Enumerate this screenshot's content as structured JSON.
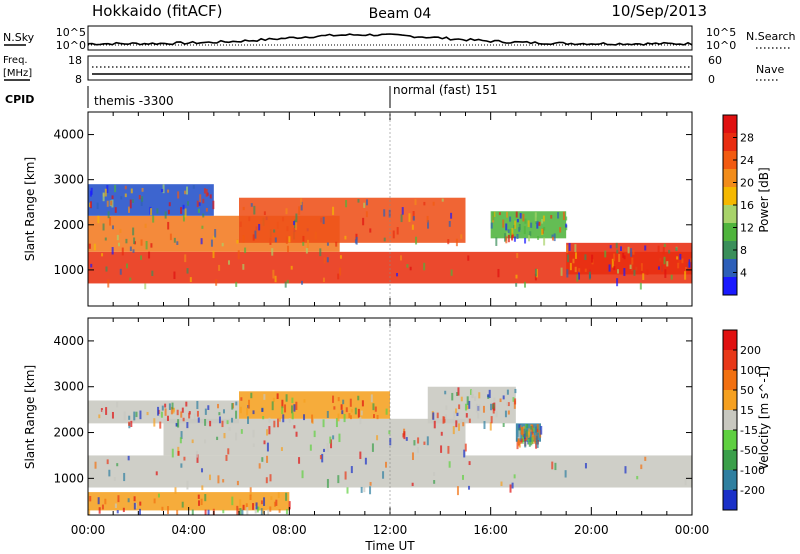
{
  "header": {
    "station": "Hokkaido (fitACF)",
    "beam": "Beam 04",
    "date": "10/Sep/2013"
  },
  "panels": {
    "nsky": {
      "label": "N.Sky",
      "right_label": "N.Search",
      "tick_top": "10^5",
      "tick_bottom": "10^0"
    },
    "freq": {
      "label_line1": "Freq.",
      "label_line2": "[MHz]",
      "right_label": "Nave",
      "left_ticks": [
        "18",
        "8"
      ],
      "right_ticks": [
        "60",
        "0"
      ]
    },
    "cpid": {
      "label": "CPID",
      "modes": [
        "themis -3300",
        "normal (fast) 151"
      ]
    }
  },
  "chart_data": [
    {
      "type": "heatmap",
      "name": "power",
      "ylabel": "Slant Range [km]",
      "xlabel": "",
      "ylim": [
        200,
        4500
      ],
      "yticks": [
        "1000",
        "2000",
        "3000",
        "4000"
      ],
      "xlim_hours": [
        0,
        24
      ],
      "colorbar": {
        "label": "Power [dB]",
        "tick_labels": [
          "4",
          "8",
          "12",
          "16",
          "20",
          "24",
          "28"
        ],
        "colors": [
          "#1a1aff",
          "#2d5fb8",
          "#3a8f5a",
          "#4fb43c",
          "#a8d36a",
          "#f5b800",
          "#f28c1a",
          "#f25a10",
          "#e82c10",
          "#e01010"
        ]
      },
      "bands": [
        {
          "x_start": 0,
          "x_end": 24,
          "y_low": 700,
          "y_high": 1400,
          "color": "#e83010"
        },
        {
          "x_start": 0,
          "x_end": 10,
          "y_low": 1400,
          "y_high": 2200,
          "color": "#f27a20"
        },
        {
          "x_start": 0,
          "x_end": 5,
          "y_low": 2200,
          "y_high": 2900,
          "color": "#2250c8"
        },
        {
          "x_start": 6,
          "x_end": 15,
          "y_low": 1600,
          "y_high": 2600,
          "color": "#ee5018"
        },
        {
          "x_start": 16,
          "x_end": 19,
          "y_low": 1700,
          "y_high": 2300,
          "color": "#4fb43c"
        },
        {
          "x_start": 19,
          "x_end": 24,
          "y_low": 900,
          "y_high": 1600,
          "color": "#e82c10"
        }
      ]
    },
    {
      "type": "heatmap",
      "name": "velocity",
      "ylabel": "Slant Range [km]",
      "xlabel": "Time UT",
      "ylim": [
        200,
        4500
      ],
      "yticks": [
        "1000",
        "2000",
        "3000",
        "4000"
      ],
      "xlim_hours": [
        0,
        24
      ],
      "xtick_labels": [
        "00:00",
        "04:00",
        "08:00",
        "12:00",
        "16:00",
        "20:00",
        "00:00"
      ],
      "colorbar": {
        "label": "Velocity [m s^-1]",
        "tick_labels": [
          "200",
          "100",
          "50",
          "15",
          "-15",
          "-50",
          "-100",
          "-200"
        ],
        "colors": [
          "#1a30c8",
          "#2f7fa0",
          "#3a9f4a",
          "#5fd040",
          "#c8c8c0",
          "#f5a020",
          "#f27010",
          "#e83818",
          "#e01010"
        ]
      },
      "bands": [
        {
          "x_start": 0,
          "x_end": 24,
          "y_low": 800,
          "y_high": 1500,
          "color": "#c8c8c0"
        },
        {
          "x_start": 3,
          "x_end": 15,
          "y_low": 1500,
          "y_high": 2300,
          "color": "#c8c8c0"
        },
        {
          "x_start": 0,
          "x_end": 6,
          "y_low": 2200,
          "y_high": 2700,
          "color": "#c8c8c0"
        },
        {
          "x_start": 6,
          "x_end": 12,
          "y_low": 2300,
          "y_high": 2900,
          "color": "#f5a020"
        },
        {
          "x_start": 13.5,
          "x_end": 17,
          "y_low": 2200,
          "y_high": 3000,
          "color": "#c8c8c0"
        },
        {
          "x_start": 17,
          "x_end": 18,
          "y_low": 1800,
          "y_high": 2200,
          "color": "#2f7fa0"
        },
        {
          "x_start": 0,
          "x_end": 8,
          "y_low": 300,
          "y_high": 700,
          "color": "#f5a020"
        }
      ]
    }
  ]
}
